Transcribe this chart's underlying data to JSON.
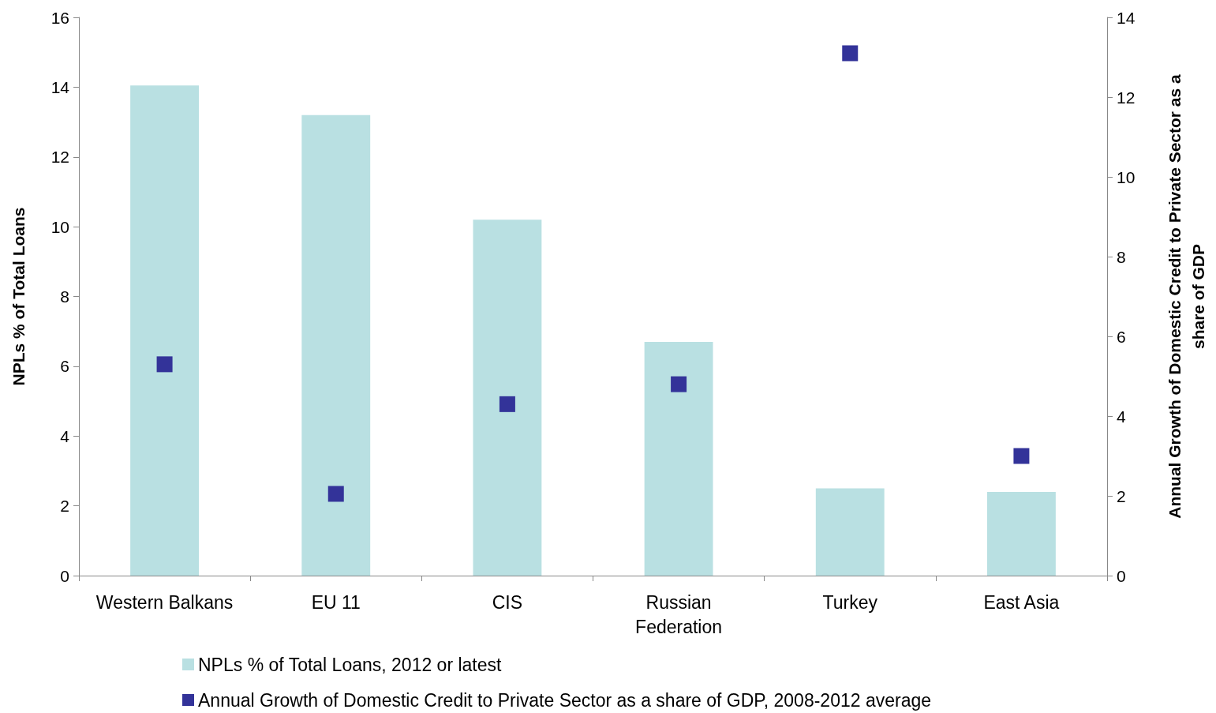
{
  "chart_data": {
    "type": "bar",
    "categories": [
      "Western Balkans",
      "EU 11",
      "CIS",
      "Russian\nFederation",
      "Turkey",
      "East Asia"
    ],
    "ylabel": "NPLs % of Total Loans",
    "y2label": "Annual Growth of Domestic Credit to Private Sector as a\nshare of GDP",
    "series": [
      {
        "name": "NPLs % of Total Loans, 2012 or latest",
        "type": "bar",
        "color": "#b9e0e2",
        "values": [
          14.05,
          13.2,
          10.2,
          6.7,
          2.5,
          2.4
        ]
      },
      {
        "name": "Annual Growth of Domestic Credit to Private Sector as a share of GDP, 2008-2012 average",
        "type": "scatter",
        "axis": "y2",
        "marker": "square",
        "color": "#333399",
        "values": [
          5.3,
          2.05,
          4.3,
          4.8,
          13.1,
          3.0
        ]
      }
    ],
    "ylim": [
      0,
      16
    ],
    "yticks": [
      0,
      2,
      4,
      6,
      8,
      10,
      12,
      14,
      16
    ],
    "y2lim": [
      0,
      14
    ],
    "y2ticks": [
      0,
      2,
      4,
      6,
      8,
      10,
      12,
      14
    ],
    "grid": false,
    "legend": "bottom"
  }
}
